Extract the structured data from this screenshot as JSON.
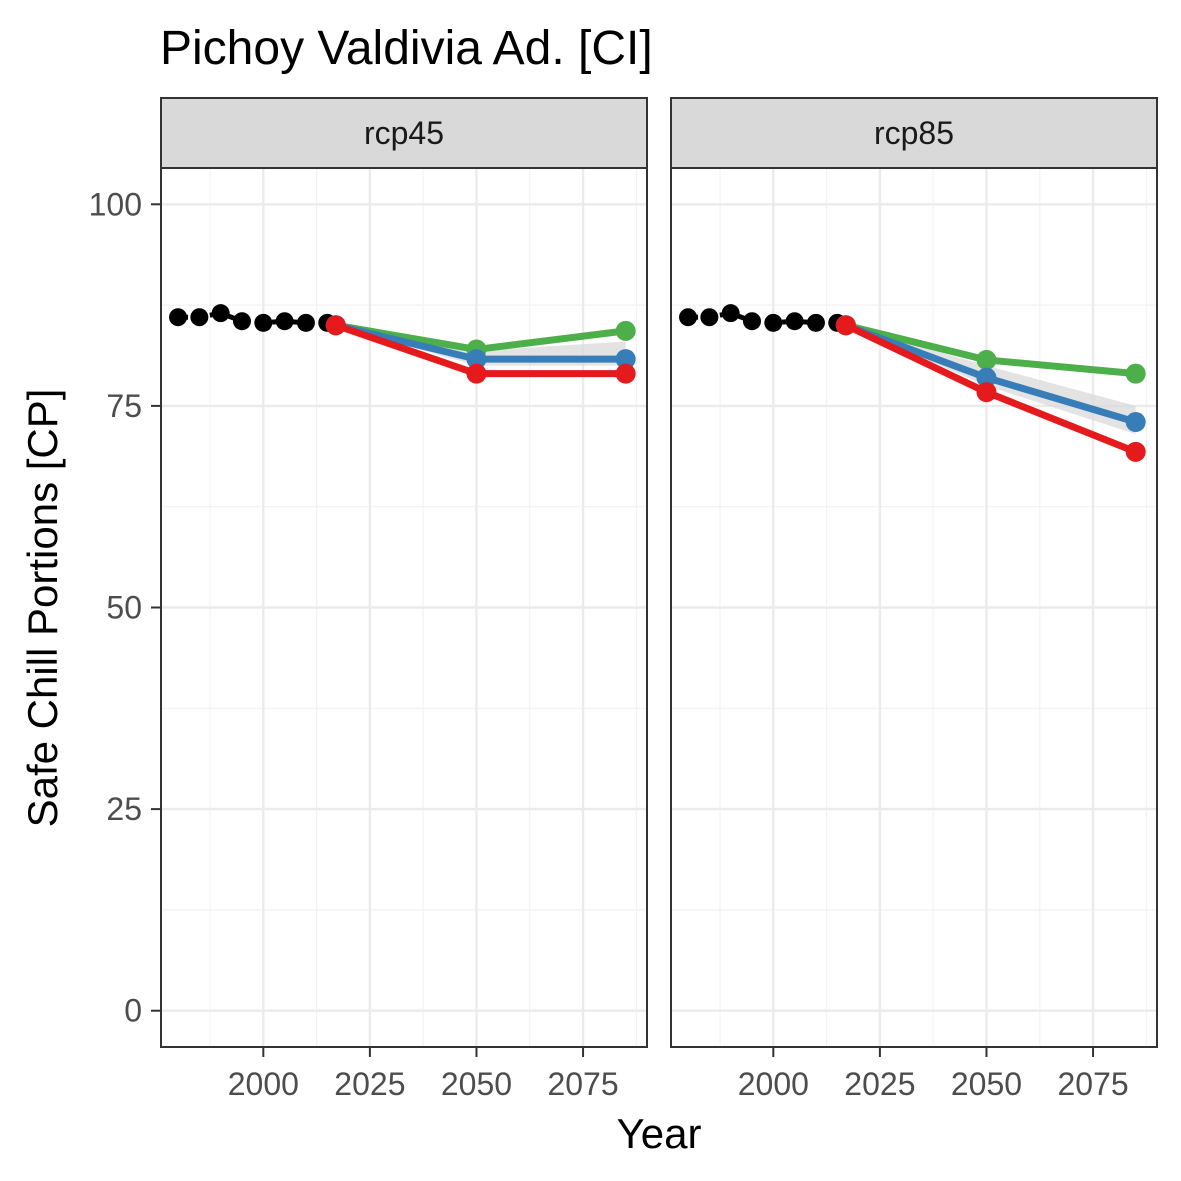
{
  "chart_data": {
    "type": "line",
    "title": "Pichoy Valdivia Ad. [CI]",
    "xlabel": "Year",
    "ylabel": "Safe Chill Portions [CP]",
    "xlim": [
      1976,
      2090
    ],
    "ylim": [
      -4.5,
      104.5
    ],
    "x_ticks": [
      2000,
      2025,
      2050,
      2075
    ],
    "y_ticks": [
      0,
      25,
      50,
      75,
      100
    ],
    "grid": true,
    "legend": "none",
    "colors": {
      "historic": "#000000",
      "green": "#4daf4a",
      "blue": "#377eb8",
      "red": "#e41a1c",
      "band": "#d9d9d9"
    },
    "panels": [
      {
        "label": "rcp45",
        "historic": {
          "x": [
            1980,
            1985,
            1990,
            1995,
            2000,
            2005,
            2010,
            2015
          ],
          "y": [
            86.0,
            86.0,
            86.5,
            85.5,
            85.3,
            85.5,
            85.3,
            85.3
          ]
        },
        "series": [
          {
            "color": "green",
            "x": [
              2017,
              2050,
              2085
            ],
            "y": [
              85.0,
              82.0,
              84.3
            ]
          },
          {
            "color": "blue",
            "x": [
              2017,
              2050,
              2085
            ],
            "y": [
              85.0,
              80.8,
              80.8
            ]
          },
          {
            "color": "red",
            "x": [
              2017,
              2050,
              2085
            ],
            "y": [
              85.0,
              79.0,
              79.0
            ]
          }
        ],
        "band": {
          "x": [
            2017,
            2050,
            2085
          ],
          "upper": [
            85.0,
            81.8,
            83.0
          ],
          "lower": [
            85.0,
            80.0,
            80.0
          ]
        }
      },
      {
        "label": "rcp85",
        "historic": {
          "x": [
            1980,
            1985,
            1990,
            1995,
            2000,
            2005,
            2010,
            2015
          ],
          "y": [
            86.0,
            86.0,
            86.5,
            85.5,
            85.3,
            85.5,
            85.3,
            85.3
          ]
        },
        "series": [
          {
            "color": "green",
            "x": [
              2017,
              2050,
              2085
            ],
            "y": [
              85.0,
              80.7,
              79.0
            ]
          },
          {
            "color": "blue",
            "x": [
              2017,
              2050,
              2085
            ],
            "y": [
              85.0,
              78.5,
              73.0
            ]
          },
          {
            "color": "red",
            "x": [
              2017,
              2050,
              2085
            ],
            "y": [
              85.0,
              76.7,
              69.3
            ]
          }
        ],
        "band": {
          "x": [
            2017,
            2050,
            2085
          ],
          "upper": [
            85.0,
            80.0,
            75.0
          ],
          "lower": [
            85.0,
            77.5,
            71.5
          ]
        }
      }
    ]
  }
}
